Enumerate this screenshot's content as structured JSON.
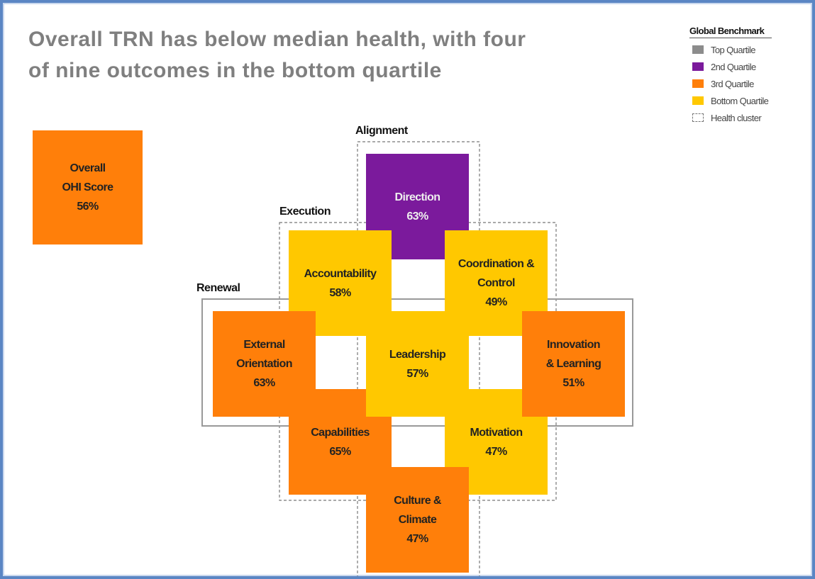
{
  "header": {
    "title_lines": [
      "Overall TRN has below median health, with four",
      "of nine outcomes in the bottom quartile"
    ]
  },
  "legend": {
    "title": "Global Benchmark",
    "items": [
      {
        "label": "Top Quartile",
        "color": "#8c8c8c"
      },
      {
        "label": "2nd Quartile",
        "color": "#7b1a9c"
      },
      {
        "label": "3rd Quartile",
        "color": "#ff7f0a"
      },
      {
        "label": "Bottom Quartile",
        "color": "#ffc800"
      },
      {
        "label": "Health cluster",
        "color": "dashed"
      }
    ]
  },
  "overall": {
    "label_lines": [
      "Overall",
      "OHI Score"
    ],
    "value": "56%",
    "color": "#ff7f0a"
  },
  "clusters": [
    {
      "label": "Alignment",
      "style": "dashed"
    },
    {
      "label": "Execution",
      "style": "dashed"
    },
    {
      "label": "Renewal",
      "style": "solid"
    }
  ],
  "nodes": [
    {
      "label_lines": [
        "Direction"
      ],
      "value": "63%",
      "color": "#7b1a9c"
    },
    {
      "label_lines": [
        "Accountability"
      ],
      "value": "58%",
      "color": "#ffc800"
    },
    {
      "label_lines": [
        "Coordination &",
        "Control"
      ],
      "value": "49%",
      "color": "#ffc800"
    },
    {
      "label_lines": [
        "Capabilities"
      ],
      "value": "65%",
      "color": "#ff7f0a"
    },
    {
      "label_lines": [
        "Motivation"
      ],
      "value": "47%",
      "color": "#ffc800"
    },
    {
      "label_lines": [
        "Culture &",
        "Climate"
      ],
      "value": "47%",
      "color": "#ff7f0a"
    },
    {
      "label_lines": [
        "External",
        "Orientation"
      ],
      "value": "63%",
      "color": "#ff7f0a"
    },
    {
      "label_lines": [
        "Innovation",
        "& Learning"
      ],
      "value": "51%",
      "color": "#ff7f0a"
    },
    {
      "label_lines": [
        "Leadership"
      ],
      "value": "57%",
      "color": "#ffc800"
    }
  ]
}
